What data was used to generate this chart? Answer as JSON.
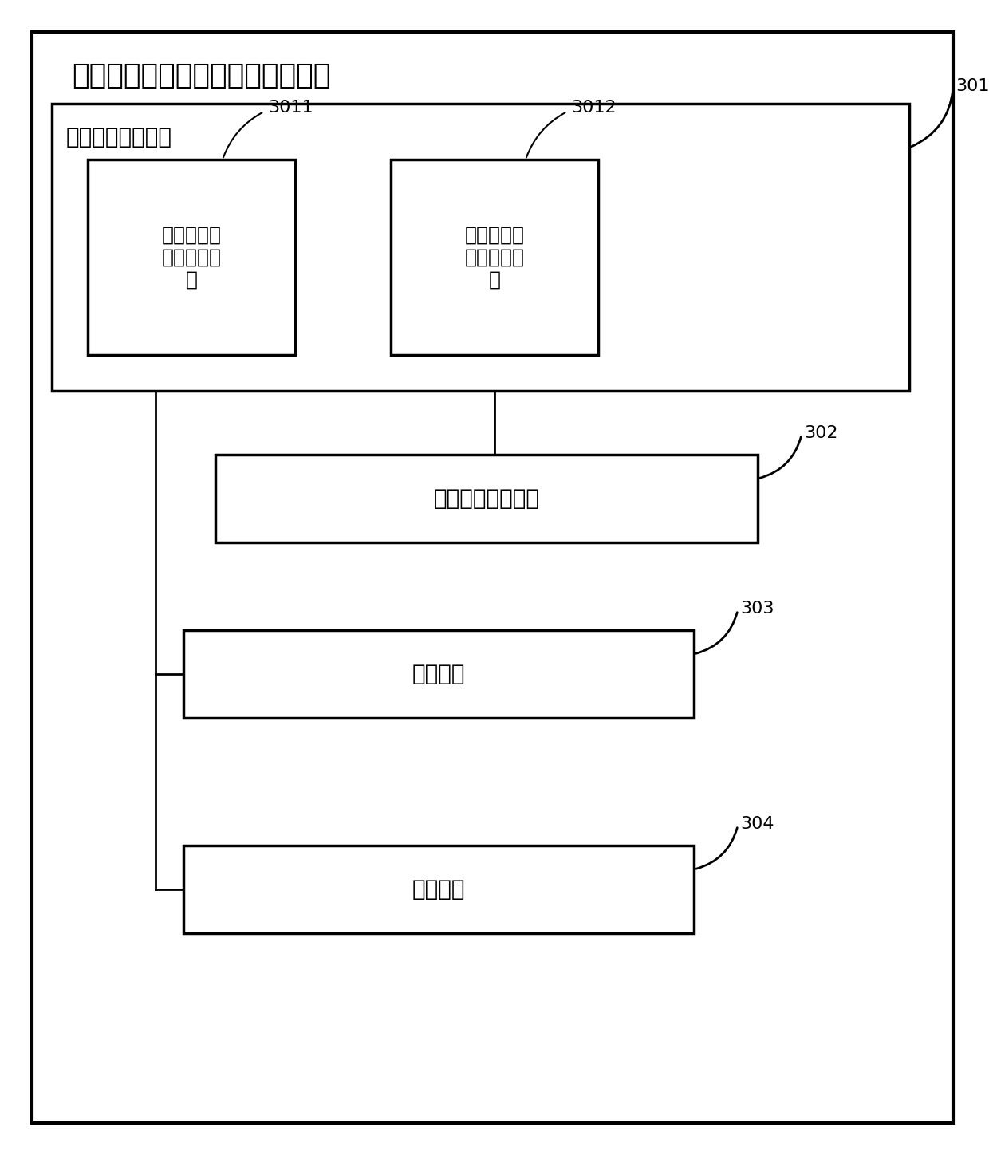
{
  "title": "覆膜印刷品的颜色偏差的控制系统",
  "bg_color": "#ffffff",
  "module301_label": "第一图像处理模块",
  "module301_id": "301",
  "module302_label": "第二图像处理模块",
  "module302_id": "302",
  "module303_label": "打样模块",
  "module303_id": "303",
  "module304_label": "印制模块",
  "module304_id": "304",
  "sub3011_label": "印刷颜色数\n据集采集装\n置",
  "sub3011_id": "3011",
  "sub3012_label": "覆膜颜色数\n据集采集装\n置",
  "sub3012_id": "3012",
  "font_size_title": 26,
  "font_size_module": 20,
  "font_size_sub": 18,
  "font_size_id": 16
}
